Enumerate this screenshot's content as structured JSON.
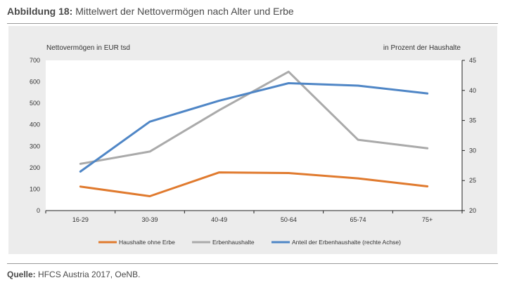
{
  "figure": {
    "label": "Abbildung 18:",
    "title": "Mittelwert der Nettovermögen nach Alter und Erbe",
    "source_label": "Quelle:",
    "source_text": "HFCS Austria 2017, OeNB."
  },
  "colors": {
    "background_panel": "#ececec",
    "plot_area": "#ffffff",
    "series_orange": "#e07a2e",
    "series_gray": "#aaaaaa",
    "series_blue": "#4f86c6"
  },
  "chart_data": {
    "type": "line",
    "categories": [
      "16-29",
      "30-39",
      "40-49",
      "50-64",
      "65-74",
      "75+"
    ],
    "left_axis": {
      "label": "Nettovermögen in EUR tsd",
      "range": [
        0,
        700
      ],
      "ticks": [
        0,
        100,
        200,
        300,
        400,
        500,
        600,
        700
      ]
    },
    "right_axis": {
      "label": "in Prozent der Haushalte",
      "range": [
        20,
        45
      ],
      "ticks": [
        20,
        25,
        30,
        35,
        40,
        45
      ]
    },
    "series": [
      {
        "name": "Haushalte ohne Erbe",
        "axis": "left",
        "color": "#e07a2e",
        "values": [
          112,
          67,
          178,
          175,
          150,
          113
        ]
      },
      {
        "name": "Erbenhaushalte",
        "axis": "left",
        "color": "#aaaaaa",
        "values": [
          218,
          275,
          468,
          647,
          330,
          290
        ]
      },
      {
        "name": "Anteil der Erbenhaushalte (rechte Achse)",
        "axis": "right",
        "color": "#4f86c6",
        "values": [
          26.5,
          34.8,
          38.3,
          41.2,
          40.8,
          39.5
        ]
      }
    ],
    "grid": false,
    "legend_position": "bottom"
  }
}
